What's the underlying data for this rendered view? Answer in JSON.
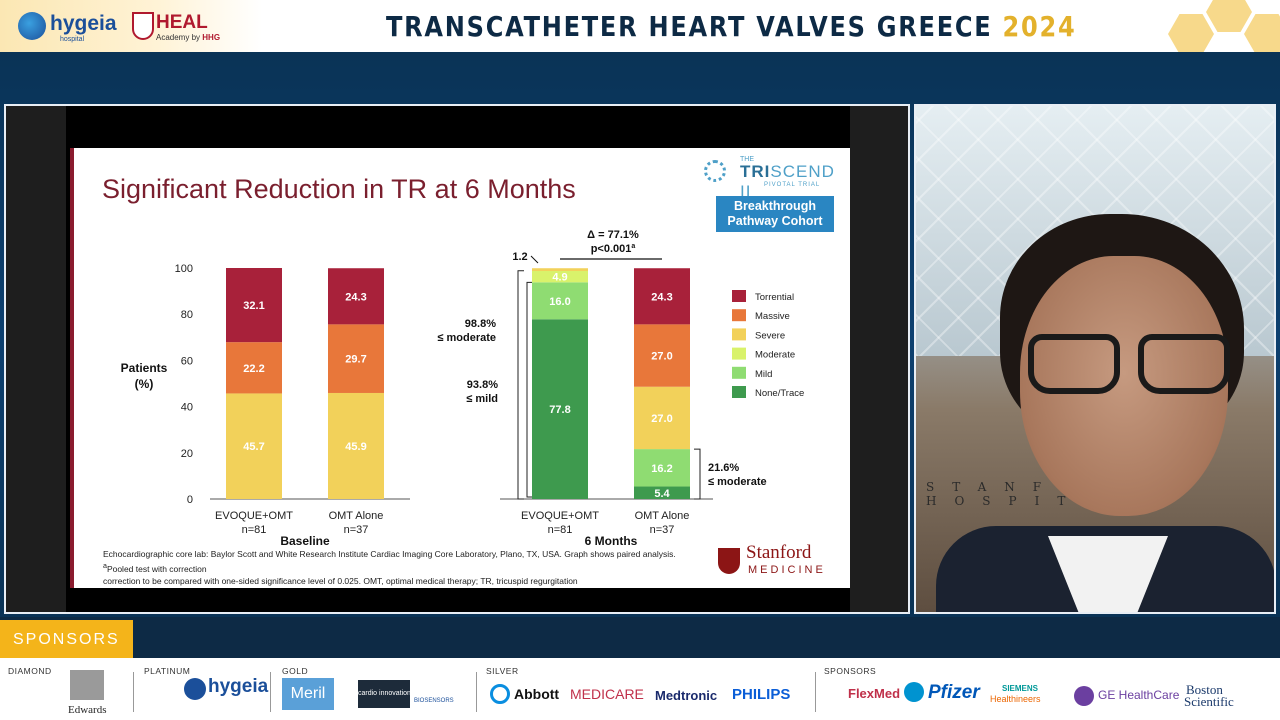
{
  "header": {
    "hygeia_logo": "hygeia",
    "hygeia_sub": "hospital",
    "heal_logo": "HEAL",
    "heal_sub_prefix": "Academy by",
    "heal_sub_brand": "HHG",
    "event_title": "TRANSCATHETER HEART VALVES GREECE",
    "event_year": "2024"
  },
  "slide": {
    "title": "Significant Reduction in TR at 6 Months",
    "trial_logo": {
      "the": "THE",
      "name_a": "TRI",
      "name_b": "SCEND II",
      "sub": "PIVOTAL TRIAL"
    },
    "cohort_label_line1": "Breakthrough",
    "cohort_label_line2": "Pathway Cohort",
    "footnote_line1": "Echocardiographic core lab: Baylor Scott and White Research Institute Cardiac Imaging Core Laboratory, Plano, TX, USA. Graph shows paired analysis. ",
    "footnote_sup": "a",
    "footnote_line1b": "Pooled test with correction",
    "footnote_line2": "correction to be compared with one-sided significance level of 0.025. OMT, optimal medical therapy; TR, tricuspid regurgitation",
    "stanford_name": "Stanford",
    "stanford_sub": "MEDICINE"
  },
  "chart_data": {
    "type": "bar",
    "stacked": true,
    "ylabel": "Patients (%)",
    "ylim": [
      0,
      100
    ],
    "yticks": [
      0,
      20,
      40,
      60,
      80,
      100
    ],
    "groups": [
      {
        "label": "Baseline",
        "bars": [
          {
            "name": "EVOQUE+OMT",
            "n": "n=81",
            "segments": [
              {
                "grade": "Severe",
                "value": 45.7
              },
              {
                "grade": "Massive",
                "value": 22.2
              },
              {
                "grade": "Torrential",
                "value": 32.1
              }
            ]
          },
          {
            "name": "OMT Alone",
            "n": "n=37",
            "segments": [
              {
                "grade": "Severe",
                "value": 45.9
              },
              {
                "grade": "Massive",
                "value": 29.7
              },
              {
                "grade": "Torrential",
                "value": 24.3
              }
            ]
          }
        ]
      },
      {
        "label": "6 Months",
        "bars": [
          {
            "name": "EVOQUE+OMT",
            "n": "n=81",
            "segments": [
              {
                "grade": "None/Trace",
                "value": 77.8
              },
              {
                "grade": "Mild",
                "value": 16.0
              },
              {
                "grade": "Moderate",
                "value": 4.9
              },
              {
                "grade": "Severe",
                "value": 1.2
              }
            ]
          },
          {
            "name": "OMT Alone",
            "n": "n=37",
            "segments": [
              {
                "grade": "None/Trace",
                "value": 5.4
              },
              {
                "grade": "Mild",
                "value": 16.2
              },
              {
                "grade": "Severe",
                "value": 27.0
              },
              {
                "grade": "Massive",
                "value": 27.0
              },
              {
                "grade": "Torrential",
                "value": 24.3
              }
            ]
          }
        ]
      }
    ],
    "legend": [
      {
        "label": "Torrential",
        "color": "#a8213a"
      },
      {
        "label": "Massive",
        "color": "#e8773a"
      },
      {
        "label": "Severe",
        "color": "#f2d15a"
      },
      {
        "label": "Moderate",
        "color": "#d9f26b"
      },
      {
        "label": "Mild",
        "color": "#8fdc72"
      },
      {
        "label": "None/Trace",
        "color": "#3e9a4e"
      }
    ],
    "annotations": {
      "delta": "Δ = 77.1%",
      "pvalue": "p<0.001",
      "pvalue_sup": "a",
      "small_label": "1.2",
      "pct_moderate": "98.8%",
      "le_moderate": "≤ moderate",
      "pct_mild": "93.8%",
      "le_mild": "≤ mild",
      "pct_omt": "21.6%",
      "le_moderate_omt": "≤ moderate"
    }
  },
  "video": {
    "wall_text": "STANFORD HOSPITAL"
  },
  "sponsors": {
    "tab_label": "SPONSORS",
    "tiers": {
      "diamond": "DIAMOND",
      "platinum": "PLATINUM",
      "gold": "GOLD",
      "silver": "SILVER",
      "sponsors": "SPONSORS"
    },
    "diamond": [
      "Edwards"
    ],
    "platinum": [
      "hygeia"
    ],
    "gold": [
      "Meril",
      "cardio innovation",
      "BIOSENSORS"
    ],
    "silver": [
      "Abbott",
      "MEDICARE",
      "Medtronic",
      "PHILIPS"
    ],
    "others": [
      "FlexMed",
      "Pfizer",
      "SIEMENS",
      "Healthineers",
      "GE HealthCare",
      "Boston",
      "Scientific"
    ]
  }
}
